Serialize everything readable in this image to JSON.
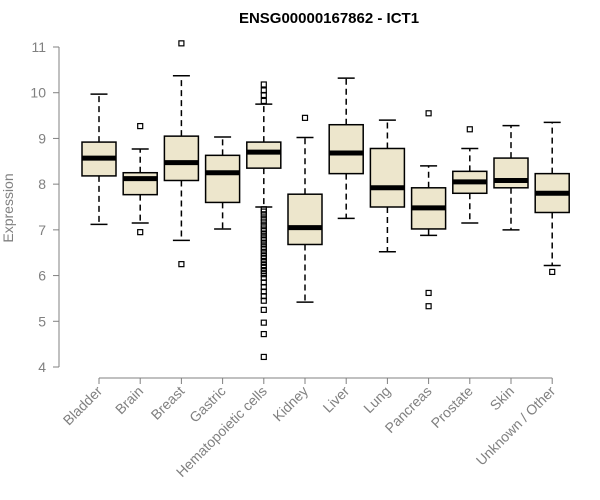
{
  "chart_data": {
    "type": "boxplot",
    "title": "ENSG00000167862 - ICT1",
    "xlabel": "",
    "ylabel": "Expression",
    "ylim": [
      4,
      11
    ],
    "yticks": [
      4,
      5,
      6,
      7,
      8,
      9,
      10,
      11
    ],
    "box_color": "#ede6cc",
    "categories": [
      "Bladder",
      "Brain",
      "Breast",
      "Gastric",
      "Hematopoietic cells",
      "Kidney",
      "Liver",
      "Lung",
      "Pancreas",
      "Prostate",
      "Skin",
      "Unknown / Other"
    ],
    "boxes": [
      {
        "name": "Bladder",
        "whisker_low": 7.12,
        "q1": 8.18,
        "median": 8.57,
        "q3": 8.92,
        "whisker_high": 9.97,
        "outliers": []
      },
      {
        "name": "Brain",
        "whisker_low": 7.15,
        "q1": 7.77,
        "median": 8.12,
        "q3": 8.25,
        "whisker_high": 8.77,
        "outliers": [
          6.95,
          9.27
        ]
      },
      {
        "name": "Breast",
        "whisker_low": 6.77,
        "q1": 8.08,
        "median": 8.47,
        "q3": 9.05,
        "whisker_high": 10.37,
        "outliers": [
          6.25,
          11.08
        ]
      },
      {
        "name": "Gastric",
        "whisker_low": 7.02,
        "q1": 7.6,
        "median": 8.25,
        "q3": 8.63,
        "whisker_high": 9.03,
        "outliers": []
      },
      {
        "name": "Hematopoietic cells",
        "whisker_low": 7.5,
        "q1": 8.35,
        "median": 8.7,
        "q3": 8.92,
        "whisker_high": 9.75,
        "outliers": [
          10.18,
          10.05,
          9.95,
          9.82,
          7.45,
          7.4,
          7.33,
          7.25,
          7.18,
          7.1,
          7.03,
          6.97,
          6.9,
          6.83,
          6.77,
          6.7,
          6.63,
          6.57,
          6.5,
          6.43,
          6.37,
          6.3,
          6.23,
          6.17,
          6.1,
          6.03,
          5.95,
          5.85,
          5.75,
          5.65,
          5.55,
          5.45,
          5.25,
          4.97,
          4.72,
          4.22
        ]
      },
      {
        "name": "Kidney",
        "whisker_low": 5.42,
        "q1": 6.68,
        "median": 7.05,
        "q3": 7.78,
        "whisker_high": 9.02,
        "outliers": [
          9.45
        ]
      },
      {
        "name": "Liver",
        "whisker_low": 7.25,
        "q1": 8.23,
        "median": 8.68,
        "q3": 9.3,
        "whisker_high": 10.32,
        "outliers": []
      },
      {
        "name": "Lung",
        "whisker_low": 6.52,
        "q1": 7.5,
        "median": 7.92,
        "q3": 8.78,
        "whisker_high": 9.4,
        "outliers": []
      },
      {
        "name": "Pancreas",
        "whisker_low": 6.88,
        "q1": 7.02,
        "median": 7.48,
        "q3": 7.92,
        "whisker_high": 8.4,
        "outliers": [
          9.55,
          5.62,
          5.33
        ]
      },
      {
        "name": "Prostate",
        "whisker_low": 7.15,
        "q1": 7.8,
        "median": 8.05,
        "q3": 8.28,
        "whisker_high": 8.78,
        "outliers": [
          9.2
        ]
      },
      {
        "name": "Skin",
        "whisker_low": 7.0,
        "q1": 7.92,
        "median": 8.08,
        "q3": 8.57,
        "whisker_high": 9.28,
        "outliers": []
      },
      {
        "name": "Unknown / Other",
        "whisker_low": 6.22,
        "q1": 7.38,
        "median": 7.8,
        "q3": 8.23,
        "whisker_high": 9.35,
        "outliers": [
          6.08
        ]
      }
    ]
  }
}
